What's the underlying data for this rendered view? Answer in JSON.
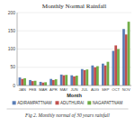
{
  "chart_data": {
    "type": "bar",
    "title": "Monthly Normal Rainfall",
    "xlabel": "Month",
    "caption": "Fig 2. Monthly normal of 30 years rainfall",
    "categories": [
      "JAN",
      "FEB",
      "MAR",
      "APR",
      "MAY",
      "JUN",
      "JUL",
      "AUG",
      "SEP",
      "OCT",
      "NOV"
    ],
    "series": [
      {
        "name": "ADIRAMPATTNAM",
        "color": "#5a7db5",
        "values": [
          22,
          15,
          10,
          18,
          30,
          28,
          45,
          55,
          60,
          95,
          155
        ]
      },
      {
        "name": "ADUTHURAI",
        "color": "#c0504d",
        "values": [
          18,
          12,
          8,
          15,
          28,
          25,
          42,
          50,
          55,
          110,
          140
        ]
      },
      {
        "name": "NAGAPATTNAM",
        "color": "#70ad47",
        "values": [
          20,
          13,
          9,
          17,
          29,
          27,
          44,
          53,
          65,
          100,
          175
        ]
      }
    ],
    "ylim": [
      0,
      200
    ],
    "yticks": [
      0,
      50,
      100,
      150,
      200
    ],
    "grid": true,
    "legend": "bottom"
  }
}
